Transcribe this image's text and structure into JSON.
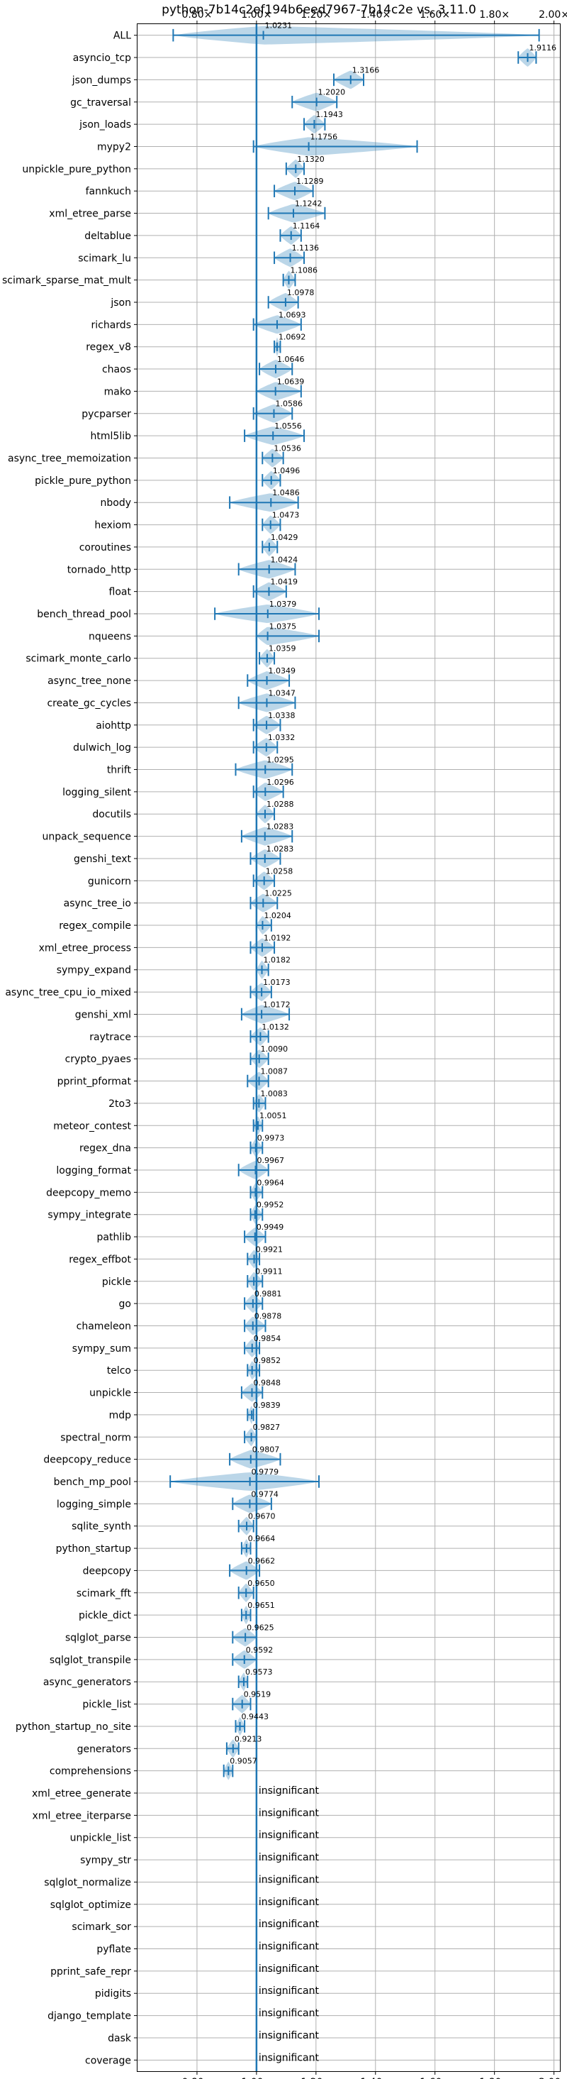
{
  "chart_data": {
    "type": "violin",
    "title": "python-7b14c2ef194b6eed7967-7b14c2e vs. 3.11.0",
    "xlim": [
      0.6,
      2.02
    ],
    "xticks": [
      0.8,
      1.0,
      1.2,
      1.4,
      1.6,
      1.8,
      2.0
    ],
    "xtick_labels": [
      "0.80×",
      "1.00×",
      "1.20×",
      "1.40×",
      "1.60×",
      "1.80×",
      "2.00×"
    ],
    "grid": true,
    "reference_x": 1.0,
    "insignificant_label": "insignificant",
    "benchmarks": [
      {
        "name": "ALL",
        "mean": 1.0231,
        "label": "1.0231",
        "min": 0.72,
        "max": 1.95
      },
      {
        "name": "asyncio_tcp",
        "mean": 1.9116,
        "label": "1.9116",
        "min": 1.88,
        "max": 1.94
      },
      {
        "name": "json_dumps",
        "mean": 1.3166,
        "label": "1.3166",
        "min": 1.26,
        "max": 1.36
      },
      {
        "name": "gc_traversal",
        "mean": 1.202,
        "label": "1.2020",
        "min": 1.12,
        "max": 1.27
      },
      {
        "name": "json_loads",
        "mean": 1.1943,
        "label": "1.1943",
        "min": 1.16,
        "max": 1.23
      },
      {
        "name": "mypy2",
        "mean": 1.1756,
        "label": "1.1756",
        "min": 0.99,
        "max": 1.54
      },
      {
        "name": "unpickle_pure_python",
        "mean": 1.132,
        "label": "1.1320",
        "min": 1.1,
        "max": 1.16
      },
      {
        "name": "fannkuch",
        "mean": 1.1289,
        "label": "1.1289",
        "min": 1.06,
        "max": 1.19
      },
      {
        "name": "xml_etree_parse",
        "mean": 1.1242,
        "label": "1.1242",
        "min": 1.04,
        "max": 1.23
      },
      {
        "name": "deltablue",
        "mean": 1.1164,
        "label": "1.1164",
        "min": 1.08,
        "max": 1.15
      },
      {
        "name": "scimark_lu",
        "mean": 1.1136,
        "label": "1.1136",
        "min": 1.06,
        "max": 1.16
      },
      {
        "name": "scimark_sparse_mat_mult",
        "mean": 1.1086,
        "label": "1.1086",
        "min": 1.09,
        "max": 1.13
      },
      {
        "name": "json",
        "mean": 1.0978,
        "label": "1.0978",
        "min": 1.04,
        "max": 1.14
      },
      {
        "name": "richards",
        "mean": 1.0693,
        "label": "1.0693",
        "min": 0.99,
        "max": 1.15
      },
      {
        "name": "regex_v8",
        "mean": 1.0692,
        "label": "1.0692",
        "min": 1.06,
        "max": 1.08
      },
      {
        "name": "chaos",
        "mean": 1.0646,
        "label": "1.0646",
        "min": 1.01,
        "max": 1.12
      },
      {
        "name": "mako",
        "mean": 1.0639,
        "label": "1.0639",
        "min": 1.0,
        "max": 1.15
      },
      {
        "name": "pycparser",
        "mean": 1.0586,
        "label": "1.0586",
        "min": 0.99,
        "max": 1.12
      },
      {
        "name": "html5lib",
        "mean": 1.0556,
        "label": "1.0556",
        "min": 0.96,
        "max": 1.16
      },
      {
        "name": "async_tree_memoization",
        "mean": 1.0536,
        "label": "1.0536",
        "min": 1.02,
        "max": 1.09
      },
      {
        "name": "pickle_pure_python",
        "mean": 1.0496,
        "label": "1.0496",
        "min": 1.02,
        "max": 1.08
      },
      {
        "name": "nbody",
        "mean": 1.0486,
        "label": "1.0486",
        "min": 0.91,
        "max": 1.14
      },
      {
        "name": "hexiom",
        "mean": 1.0473,
        "label": "1.0473",
        "min": 1.02,
        "max": 1.08
      },
      {
        "name": "coroutines",
        "mean": 1.0429,
        "label": "1.0429",
        "min": 1.02,
        "max": 1.07
      },
      {
        "name": "tornado_http",
        "mean": 1.0424,
        "label": "1.0424",
        "min": 0.94,
        "max": 1.13
      },
      {
        "name": "float",
        "mean": 1.0419,
        "label": "1.0419",
        "min": 0.99,
        "max": 1.1
      },
      {
        "name": "bench_thread_pool",
        "mean": 1.0379,
        "label": "1.0379",
        "min": 0.86,
        "max": 1.21
      },
      {
        "name": "nqueens",
        "mean": 1.0375,
        "label": "1.0375",
        "min": 1.0,
        "max": 1.21
      },
      {
        "name": "scimark_monte_carlo",
        "mean": 1.0359,
        "label": "1.0359",
        "min": 1.01,
        "max": 1.06
      },
      {
        "name": "async_tree_none",
        "mean": 1.0349,
        "label": "1.0349",
        "min": 0.97,
        "max": 1.11
      },
      {
        "name": "create_gc_cycles",
        "mean": 1.0347,
        "label": "1.0347",
        "min": 0.94,
        "max": 1.13
      },
      {
        "name": "aiohttp",
        "mean": 1.0338,
        "label": "1.0338",
        "min": 0.99,
        "max": 1.08
      },
      {
        "name": "dulwich_log",
        "mean": 1.0332,
        "label": "1.0332",
        "min": 0.99,
        "max": 1.07
      },
      {
        "name": "thrift",
        "mean": 1.0295,
        "label": "1.0295",
        "min": 0.93,
        "max": 1.12
      },
      {
        "name": "logging_silent",
        "mean": 1.0296,
        "label": "1.0296",
        "min": 0.99,
        "max": 1.09
      },
      {
        "name": "docutils",
        "mean": 1.0288,
        "label": "1.0288",
        "min": 1.0,
        "max": 1.06
      },
      {
        "name": "unpack_sequence",
        "mean": 1.0283,
        "label": "1.0283",
        "min": 0.95,
        "max": 1.12
      },
      {
        "name": "genshi_text",
        "mean": 1.0283,
        "label": "1.0283",
        "min": 0.98,
        "max": 1.08
      },
      {
        "name": "gunicorn",
        "mean": 1.0258,
        "label": "1.0258",
        "min": 0.99,
        "max": 1.06
      },
      {
        "name": "async_tree_io",
        "mean": 1.0225,
        "label": "1.0225",
        "min": 0.98,
        "max": 1.07
      },
      {
        "name": "regex_compile",
        "mean": 1.0204,
        "label": "1.0204",
        "min": 1.0,
        "max": 1.05
      },
      {
        "name": "xml_etree_process",
        "mean": 1.0192,
        "label": "1.0192",
        "min": 0.98,
        "max": 1.06
      },
      {
        "name": "sympy_expand",
        "mean": 1.0182,
        "label": "1.0182",
        "min": 1.0,
        "max": 1.04
      },
      {
        "name": "async_tree_cpu_io_mixed",
        "mean": 1.0173,
        "label": "1.0173",
        "min": 0.98,
        "max": 1.05
      },
      {
        "name": "genshi_xml",
        "mean": 1.0172,
        "label": "1.0172",
        "min": 0.95,
        "max": 1.11
      },
      {
        "name": "raytrace",
        "mean": 1.0132,
        "label": "1.0132",
        "min": 0.98,
        "max": 1.04
      },
      {
        "name": "crypto_pyaes",
        "mean": 1.009,
        "label": "1.0090",
        "min": 0.98,
        "max": 1.04
      },
      {
        "name": "pprint_pformat",
        "mean": 1.0087,
        "label": "1.0087",
        "min": 0.97,
        "max": 1.04
      },
      {
        "name": "2to3",
        "mean": 1.0083,
        "label": "1.0083",
        "min": 0.99,
        "max": 1.03
      },
      {
        "name": "meteor_contest",
        "mean": 1.0051,
        "label": "1.0051",
        "min": 0.99,
        "max": 1.02
      },
      {
        "name": "regex_dna",
        "mean": 0.9973,
        "label": "0.9973",
        "min": 0.98,
        "max": 1.02
      },
      {
        "name": "logging_format",
        "mean": 0.9967,
        "label": "0.9967",
        "min": 0.94,
        "max": 1.04
      },
      {
        "name": "deepcopy_memo",
        "mean": 0.9964,
        "label": "0.9964",
        "min": 0.98,
        "max": 1.02
      },
      {
        "name": "sympy_integrate",
        "mean": 0.9952,
        "label": "0.9952",
        "min": 0.98,
        "max": 1.02
      },
      {
        "name": "pathlib",
        "mean": 0.9949,
        "label": "0.9949",
        "min": 0.96,
        "max": 1.03
      },
      {
        "name": "regex_effbot",
        "mean": 0.9921,
        "label": "0.9921",
        "min": 0.97,
        "max": 1.01
      },
      {
        "name": "pickle",
        "mean": 0.9911,
        "label": "0.9911",
        "min": 0.97,
        "max": 1.02
      },
      {
        "name": "go",
        "mean": 0.9881,
        "label": "0.9881",
        "min": 0.96,
        "max": 1.02
      },
      {
        "name": "chameleon",
        "mean": 0.9878,
        "label": "0.9878",
        "min": 0.96,
        "max": 1.03
      },
      {
        "name": "sympy_sum",
        "mean": 0.9854,
        "label": "0.9854",
        "min": 0.96,
        "max": 1.01
      },
      {
        "name": "telco",
        "mean": 0.9852,
        "label": "0.9852",
        "min": 0.97,
        "max": 1.01
      },
      {
        "name": "unpickle",
        "mean": 0.9848,
        "label": "0.9848",
        "min": 0.95,
        "max": 1.02
      },
      {
        "name": "mdp",
        "mean": 0.9839,
        "label": "0.9839",
        "min": 0.97,
        "max": 0.99
      },
      {
        "name": "spectral_norm",
        "mean": 0.9827,
        "label": "0.9827",
        "min": 0.96,
        "max": 1.0
      },
      {
        "name": "deepcopy_reduce",
        "mean": 0.9807,
        "label": "0.9807",
        "min": 0.91,
        "max": 1.08
      },
      {
        "name": "bench_mp_pool",
        "mean": 0.9779,
        "label": "0.9779",
        "min": 0.71,
        "max": 1.21
      },
      {
        "name": "logging_simple",
        "mean": 0.9774,
        "label": "0.9774",
        "min": 0.92,
        "max": 1.05
      },
      {
        "name": "sqlite_synth",
        "mean": 0.967,
        "label": "0.9670",
        "min": 0.94,
        "max": 0.99
      },
      {
        "name": "python_startup",
        "mean": 0.9664,
        "label": "0.9664",
        "min": 0.95,
        "max": 0.98
      },
      {
        "name": "deepcopy",
        "mean": 0.9662,
        "label": "0.9662",
        "min": 0.91,
        "max": 1.01
      },
      {
        "name": "scimark_fft",
        "mean": 0.965,
        "label": "0.9650",
        "min": 0.94,
        "max": 0.99
      },
      {
        "name": "pickle_dict",
        "mean": 0.9651,
        "label": "0.9651",
        "min": 0.95,
        "max": 0.98
      },
      {
        "name": "sqlglot_parse",
        "mean": 0.9625,
        "label": "0.9625",
        "min": 0.92,
        "max": 1.0
      },
      {
        "name": "sqlglot_transpile",
        "mean": 0.9592,
        "label": "0.9592",
        "min": 0.92,
        "max": 1.0
      },
      {
        "name": "async_generators",
        "mean": 0.9573,
        "label": "0.9573",
        "min": 0.94,
        "max": 0.97
      },
      {
        "name": "pickle_list",
        "mean": 0.9519,
        "label": "0.9519",
        "min": 0.92,
        "max": 0.98
      },
      {
        "name": "python_startup_no_site",
        "mean": 0.9443,
        "label": "0.9443",
        "min": 0.93,
        "max": 0.96
      },
      {
        "name": "generators",
        "mean": 0.9213,
        "label": "0.9213",
        "min": 0.9,
        "max": 0.94
      },
      {
        "name": "comprehensions",
        "mean": 0.9057,
        "label": "0.9057",
        "min": 0.89,
        "max": 0.92
      },
      {
        "name": "xml_etree_generate",
        "insignificant": true
      },
      {
        "name": "xml_etree_iterparse",
        "insignificant": true
      },
      {
        "name": "unpickle_list",
        "insignificant": true
      },
      {
        "name": "sympy_str",
        "insignificant": true
      },
      {
        "name": "sqlglot_normalize",
        "insignificant": true
      },
      {
        "name": "sqlglot_optimize",
        "insignificant": true
      },
      {
        "name": "scimark_sor",
        "insignificant": true
      },
      {
        "name": "pyflate",
        "insignificant": true
      },
      {
        "name": "pprint_safe_repr",
        "insignificant": true
      },
      {
        "name": "pidigits",
        "insignificant": true
      },
      {
        "name": "django_template",
        "insignificant": true
      },
      {
        "name": "dask",
        "insignificant": true
      },
      {
        "name": "coverage",
        "insignificant": true
      }
    ]
  }
}
